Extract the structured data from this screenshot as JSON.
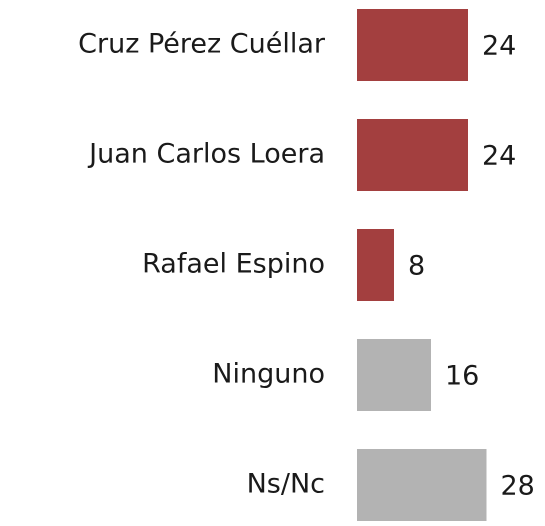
{
  "chart_data": {
    "type": "hbar",
    "categories": [
      "Cruz Pérez Cuéllar",
      "Juan Carlos Loera",
      "Rafael Espino",
      "Ninguno",
      "Ns/Nc"
    ],
    "values": [
      24,
      24,
      8,
      16,
      28
    ],
    "colors": [
      "#a33f3f",
      "#a33f3f",
      "#a33f3f",
      "#b3b3b3",
      "#b3b3b3"
    ]
  }
}
